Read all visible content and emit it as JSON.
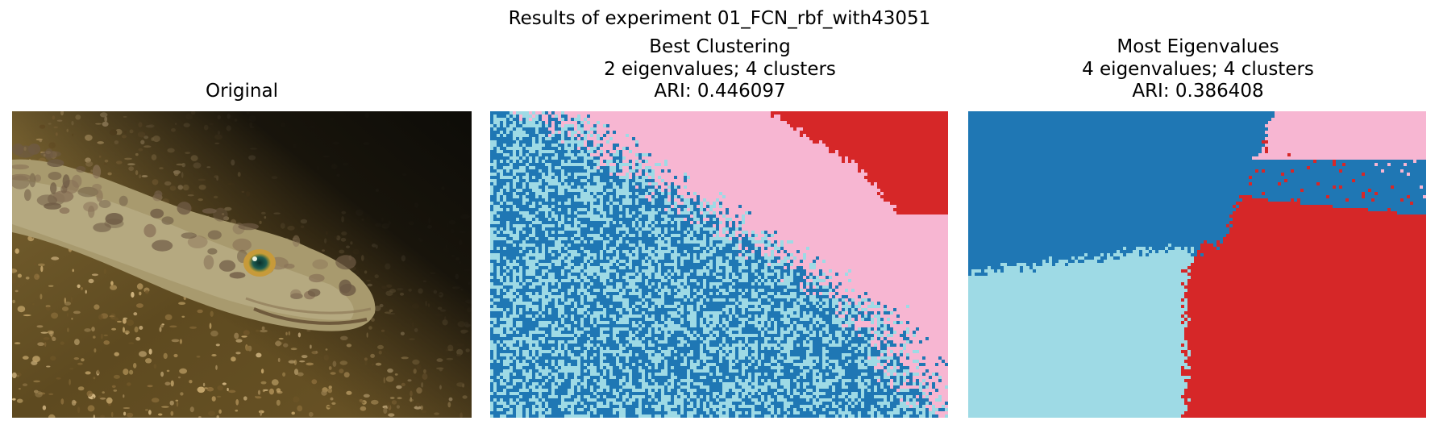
{
  "figure": {
    "suptitle": "Results of experiment 01_FCN_rbf_with43051"
  },
  "panels": [
    {
      "title_lines": [
        "Original"
      ],
      "kind": "photo",
      "subject": "lizardfish resting on gravel seabed"
    },
    {
      "title_lines": [
        "Best Clustering",
        "2 eigenvalues; 4 clusters",
        "ARI: 0.446097"
      ],
      "kind": "segmentation",
      "eigenvalues": 2,
      "clusters": 4,
      "ari": 0.446097
    },
    {
      "title_lines": [
        "Most Eigenvalues",
        "4 eigenvalues; 4 clusters",
        "ARI: 0.386408"
      ],
      "kind": "segmentation",
      "eigenvalues": 4,
      "clusters": 4,
      "ari": 0.386408
    }
  ],
  "cluster_colors": [
    "#1f77b4",
    "#9edae5",
    "#f7b6d2",
    "#d62728"
  ]
}
